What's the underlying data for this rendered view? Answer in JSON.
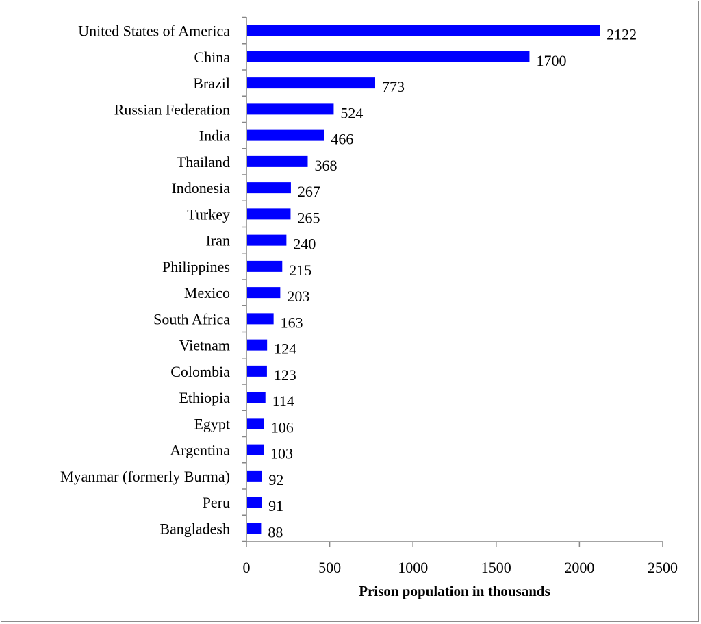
{
  "chart_data": {
    "type": "bar",
    "orientation": "horizontal",
    "title": "",
    "xlabel": "Prison population in thousands",
    "ylabel": "",
    "xlim": [
      0,
      2500
    ],
    "xticks": [
      0,
      500,
      1000,
      1500,
      2000,
      2500
    ],
    "grid": false,
    "legend": "none",
    "bar_color": "#0000FF",
    "categories": [
      "United States of America",
      "China",
      "Brazil",
      "Russian Federation",
      "India",
      "Thailand",
      "Indonesia",
      "Turkey",
      "Iran",
      "Philippines",
      "Mexico",
      "South Africa",
      "Vietnam",
      "Colombia",
      "Ethiopia",
      "Egypt",
      "Argentina",
      "Myanmar (formerly Burma)",
      "Peru",
      "Bangladesh"
    ],
    "values": [
      2122,
      1700,
      773,
      524,
      466,
      368,
      267,
      265,
      240,
      215,
      203,
      163,
      124,
      123,
      114,
      106,
      103,
      92,
      91,
      88
    ]
  }
}
